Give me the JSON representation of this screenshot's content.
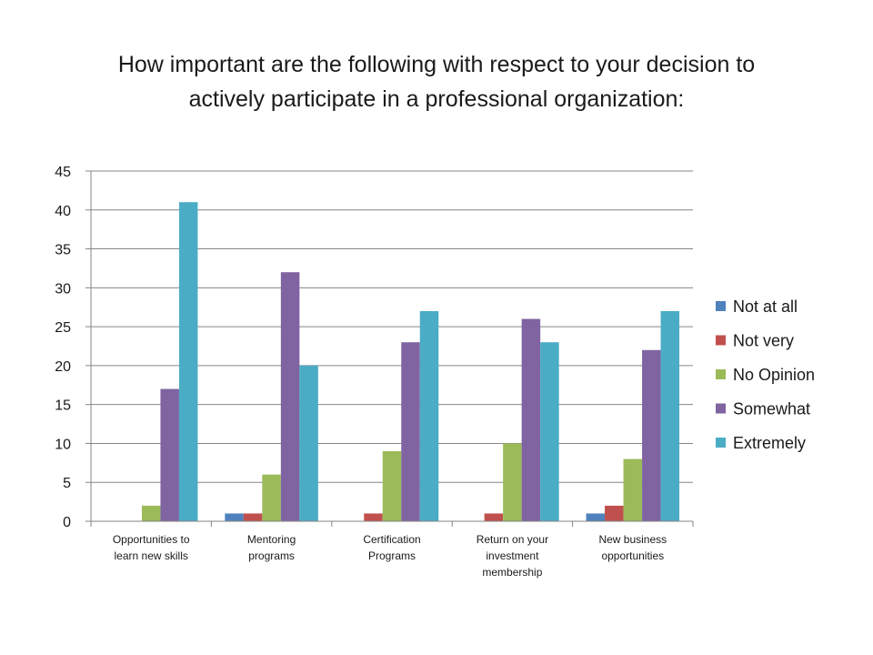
{
  "title_lines": [
    "How important are the following with respect to your decision to",
    "actively participate in a professional organization:"
  ],
  "chart_data": {
    "type": "bar",
    "title": "How important are the following with respect to your decision to actively participate in a professional organization:",
    "categories": [
      [
        "Opportunities to",
        "learn new skills"
      ],
      [
        "Mentoring",
        "programs"
      ],
      [
        "Certification",
        "Programs"
      ],
      [
        "Return on your",
        "investment",
        "membership"
      ],
      [
        "New business",
        "opportunities"
      ]
    ],
    "series": [
      {
        "name": "Not at all",
        "color": "#4F81BD",
        "values": [
          0,
          1,
          0,
          0,
          1
        ]
      },
      {
        "name": "Not very",
        "color": "#C0504D",
        "values": [
          0,
          1,
          1,
          1,
          2
        ]
      },
      {
        "name": "No Opinion",
        "color": "#9BBB59",
        "values": [
          2,
          6,
          9,
          10,
          8
        ]
      },
      {
        "name": "Somewhat",
        "color": "#8064A2",
        "values": [
          17,
          32,
          23,
          26,
          22
        ]
      },
      {
        "name": "Extremely",
        "color": "#4BACC6",
        "values": [
          41,
          20,
          27,
          23,
          27
        ]
      }
    ],
    "ylim": [
      0,
      45
    ],
    "yticks": [
      0,
      5,
      10,
      15,
      20,
      25,
      30,
      35,
      40,
      45
    ],
    "grid": true,
    "legend_position": "right",
    "xlabel": "",
    "ylabel": ""
  }
}
